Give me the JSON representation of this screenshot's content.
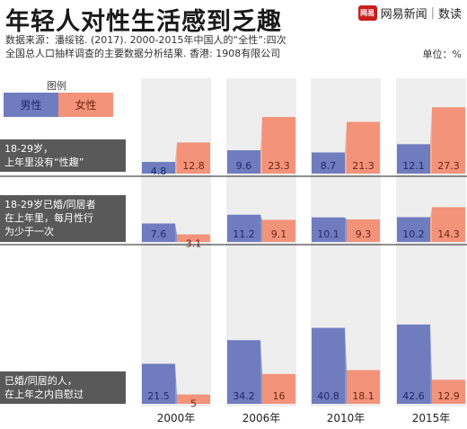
{
  "header": {
    "title": "年轻人对性生活感到乏趣",
    "brand_logo": "网易",
    "brand_name": "网易新闻",
    "brand_section": "数读",
    "source_line1": "数据来源：潘绥铭. (2017). 2000-2015年中国人的“全性”:四次",
    "source_line2": "全国总人口抽样调查的主要数据分析结果. 香港: 1908有限公司",
    "unit": "单位：%"
  },
  "legend": {
    "title": "图例",
    "male": "男性",
    "female": "女性"
  },
  "colors": {
    "male": "#6f7dbf",
    "male_side": "#8b97cb",
    "female": "#f3937a",
    "female_side": "#f6ab97",
    "column_bg": "#eeeeee",
    "label_bg": "#595959"
  },
  "chart_data": {
    "type": "bar",
    "categories": [
      "2000年",
      "2006年",
      "2010年",
      "2015年"
    ],
    "groups": [
      {
        "label": "18-29岁，\n上年里没有“性趣”",
        "series": [
          {
            "name": "男性",
            "values": [
              4.8,
              9.6,
              8.7,
              12.1
            ]
          },
          {
            "name": "女性",
            "values": [
              12.8,
              23.3,
              21.3,
              27.3
            ]
          }
        ]
      },
      {
        "label": "18-29岁已婚/同居者\n在上年里，每月性行\n为少于一次",
        "series": [
          {
            "name": "男性",
            "values": [
              7.6,
              11.2,
              10.1,
              10.2
            ]
          },
          {
            "name": "女性",
            "values": [
              3.1,
              9.1,
              9.3,
              14.3
            ]
          }
        ]
      },
      {
        "label": "已婚/同居的人，\n在上年之内自慰过",
        "series": [
          {
            "name": "男性",
            "values": [
              21.5,
              34.2,
              40.8,
              42.6
            ]
          },
          {
            "name": "女性",
            "values": [
              5.0,
              16.0,
              18.1,
              12.9
            ]
          }
        ]
      }
    ]
  }
}
